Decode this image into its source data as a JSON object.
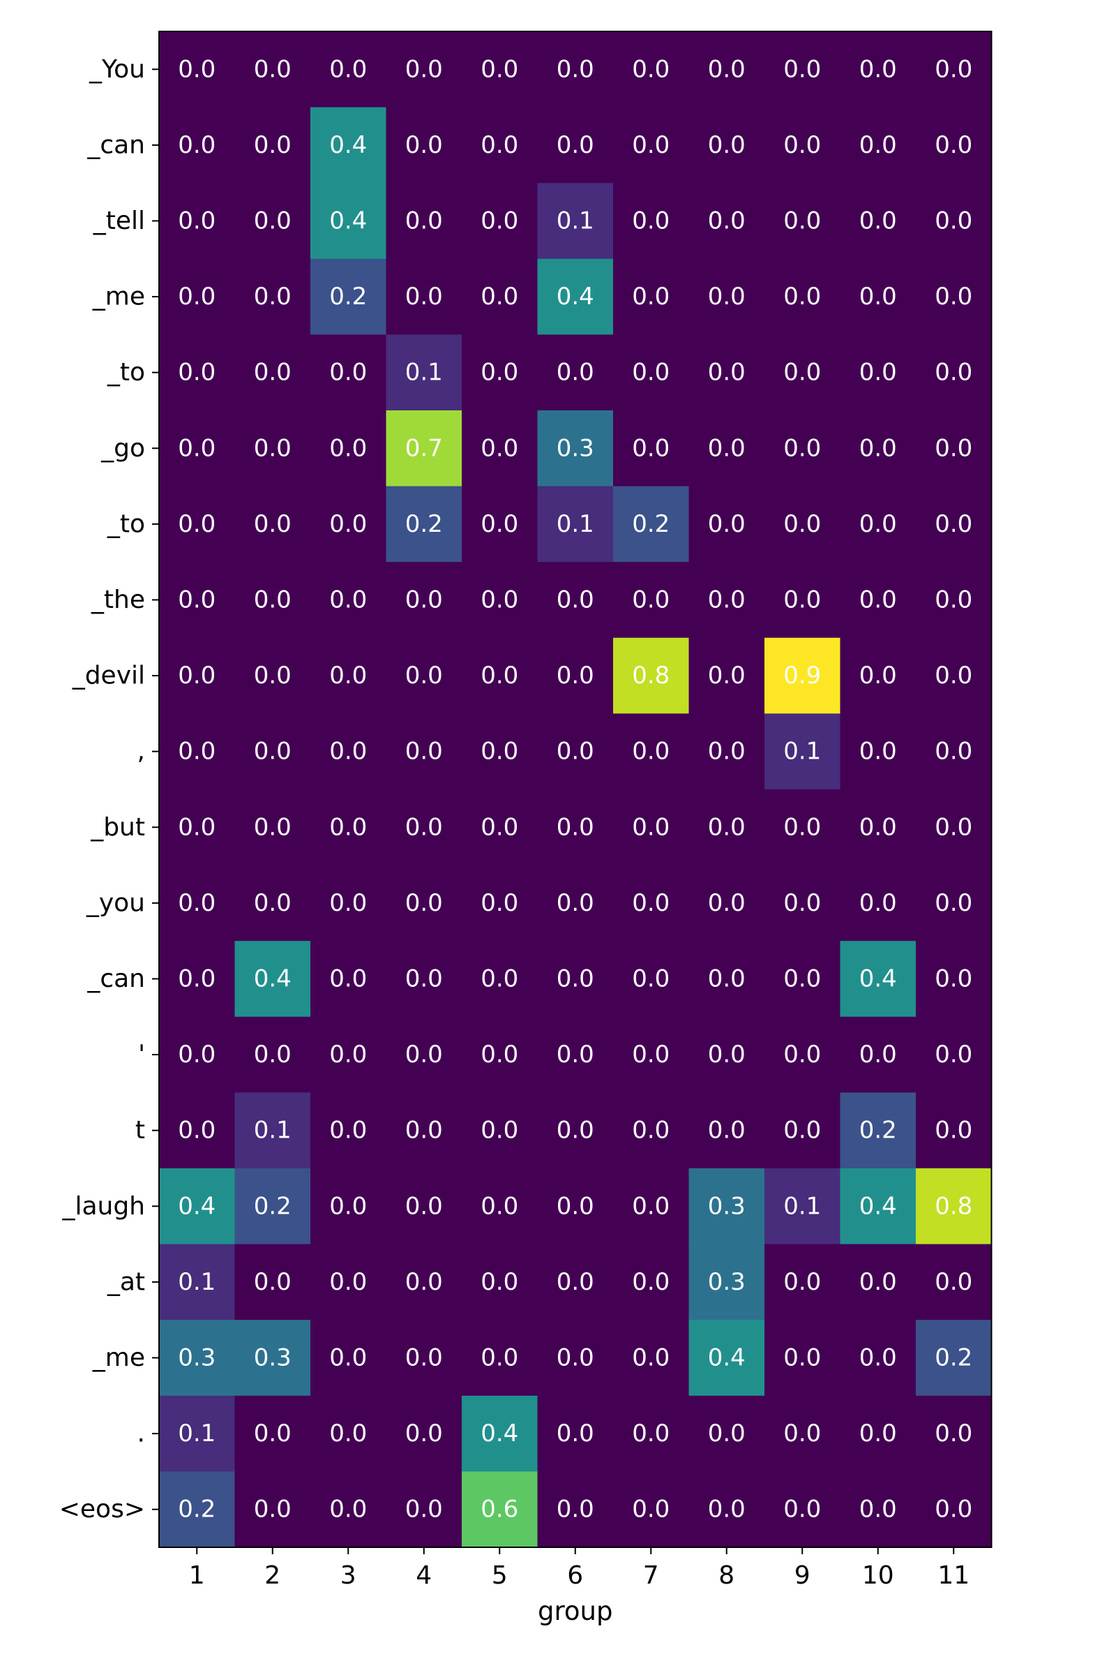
{
  "chart_data": {
    "type": "heatmap",
    "xlabel": "group",
    "ylabel": "",
    "colormap": "viridis",
    "vmin": 0.0,
    "vmax": 0.9,
    "x_labels": [
      "1",
      "2",
      "3",
      "4",
      "5",
      "6",
      "7",
      "8",
      "9",
      "10",
      "11"
    ],
    "y_labels": [
      "_You",
      "_can",
      "_tell",
      "_me",
      "_to",
      "_go",
      "_to",
      "_the",
      "_devil",
      ",",
      "_but",
      "_you",
      "_can",
      "'",
      "t",
      "_laugh",
      "_at",
      "_me",
      ".",
      "<eos>"
    ],
    "values": [
      [
        0.0,
        0.0,
        0.0,
        0.0,
        0.0,
        0.0,
        0.0,
        0.0,
        0.0,
        0.0,
        0.0
      ],
      [
        0.0,
        0.0,
        0.4,
        0.0,
        0.0,
        0.0,
        0.0,
        0.0,
        0.0,
        0.0,
        0.0
      ],
      [
        0.0,
        0.0,
        0.4,
        0.0,
        0.0,
        0.1,
        0.0,
        0.0,
        0.0,
        0.0,
        0.0
      ],
      [
        0.0,
        0.0,
        0.2,
        0.0,
        0.0,
        0.4,
        0.0,
        0.0,
        0.0,
        0.0,
        0.0
      ],
      [
        0.0,
        0.0,
        0.0,
        0.1,
        0.0,
        0.0,
        0.0,
        0.0,
        0.0,
        0.0,
        0.0
      ],
      [
        0.0,
        0.0,
        0.0,
        0.7,
        0.0,
        0.3,
        0.0,
        0.0,
        0.0,
        0.0,
        0.0
      ],
      [
        0.0,
        0.0,
        0.0,
        0.2,
        0.0,
        0.1,
        0.2,
        0.0,
        0.0,
        0.0,
        0.0
      ],
      [
        0.0,
        0.0,
        0.0,
        0.0,
        0.0,
        0.0,
        0.0,
        0.0,
        0.0,
        0.0,
        0.0
      ],
      [
        0.0,
        0.0,
        0.0,
        0.0,
        0.0,
        0.0,
        0.8,
        0.0,
        0.9,
        0.0,
        0.0
      ],
      [
        0.0,
        0.0,
        0.0,
        0.0,
        0.0,
        0.0,
        0.0,
        0.0,
        0.1,
        0.0,
        0.0
      ],
      [
        0.0,
        0.0,
        0.0,
        0.0,
        0.0,
        0.0,
        0.0,
        0.0,
        0.0,
        0.0,
        0.0
      ],
      [
        0.0,
        0.0,
        0.0,
        0.0,
        0.0,
        0.0,
        0.0,
        0.0,
        0.0,
        0.0,
        0.0
      ],
      [
        0.0,
        0.4,
        0.0,
        0.0,
        0.0,
        0.0,
        0.0,
        0.0,
        0.0,
        0.4,
        0.0
      ],
      [
        0.0,
        0.0,
        0.0,
        0.0,
        0.0,
        0.0,
        0.0,
        0.0,
        0.0,
        0.0,
        0.0
      ],
      [
        0.0,
        0.1,
        0.0,
        0.0,
        0.0,
        0.0,
        0.0,
        0.0,
        0.0,
        0.2,
        0.0
      ],
      [
        0.4,
        0.2,
        0.0,
        0.0,
        0.0,
        0.0,
        0.0,
        0.3,
        0.1,
        0.4,
        0.8
      ],
      [
        0.1,
        0.0,
        0.0,
        0.0,
        0.0,
        0.0,
        0.0,
        0.3,
        0.0,
        0.0,
        0.0
      ],
      [
        0.3,
        0.3,
        0.0,
        0.0,
        0.0,
        0.0,
        0.0,
        0.4,
        0.0,
        0.0,
        0.2
      ],
      [
        0.1,
        0.0,
        0.0,
        0.0,
        0.4,
        0.0,
        0.0,
        0.0,
        0.0,
        0.0,
        0.0
      ],
      [
        0.2,
        0.0,
        0.0,
        0.0,
        0.6,
        0.0,
        0.0,
        0.0,
        0.0,
        0.0,
        0.0
      ]
    ],
    "cell_labels": [
      [
        "0.0",
        "0.0",
        "0.0",
        "0.0",
        "0.0",
        "0.0",
        "0.0",
        "0.0",
        "0.0",
        "0.0",
        "0.0"
      ],
      [
        "0.0",
        "0.0",
        "0.4",
        "0.0",
        "0.0",
        "0.0",
        "0.0",
        "0.0",
        "0.0",
        "0.0",
        "0.0"
      ],
      [
        "0.0",
        "0.0",
        "0.4",
        "0.0",
        "0.0",
        "0.1",
        "0.0",
        "0.0",
        "0.0",
        "0.0",
        "0.0"
      ],
      [
        "0.0",
        "0.0",
        "0.2",
        "0.0",
        "0.0",
        "0.4",
        "0.0",
        "0.0",
        "0.0",
        "0.0",
        "0.0"
      ],
      [
        "0.0",
        "0.0",
        "0.0",
        "0.1",
        "0.0",
        "0.0",
        "0.0",
        "0.0",
        "0.0",
        "0.0",
        "0.0"
      ],
      [
        "0.0",
        "0.0",
        "0.0",
        "0.7",
        "0.0",
        "0.3",
        "0.0",
        "0.0",
        "0.0",
        "0.0",
        "0.0"
      ],
      [
        "0.0",
        "0.0",
        "0.0",
        "0.2",
        "0.0",
        "0.1",
        "0.2",
        "0.0",
        "0.0",
        "0.0",
        "0.0"
      ],
      [
        "0.0",
        "0.0",
        "0.0",
        "0.0",
        "0.0",
        "0.0",
        "0.0",
        "0.0",
        "0.0",
        "0.0",
        "0.0"
      ],
      [
        "0.0",
        "0.0",
        "0.0",
        "0.0",
        "0.0",
        "0.0",
        "0.8",
        "0.0",
        "0.9",
        "0.0",
        "0.0"
      ],
      [
        "0.0",
        "0.0",
        "0.0",
        "0.0",
        "0.0",
        "0.0",
        "0.0",
        "0.0",
        "0.1",
        "0.0",
        "0.0"
      ],
      [
        "0.0",
        "0.0",
        "0.0",
        "0.0",
        "0.0",
        "0.0",
        "0.0",
        "0.0",
        "0.0",
        "0.0",
        "0.0"
      ],
      [
        "0.0",
        "0.0",
        "0.0",
        "0.0",
        "0.0",
        "0.0",
        "0.0",
        "0.0",
        "0.0",
        "0.0",
        "0.0"
      ],
      [
        "0.0",
        "0.4",
        "0.0",
        "0.0",
        "0.0",
        "0.0",
        "0.0",
        "0.0",
        "0.0",
        "0.4",
        "0.0"
      ],
      [
        "0.0",
        "0.0",
        "0.0",
        "0.0",
        "0.0",
        "0.0",
        "0.0",
        "0.0",
        "0.0",
        "0.0",
        "0.0"
      ],
      [
        "0.0",
        "0.1",
        "0.0",
        "0.0",
        "0.0",
        "0.0",
        "0.0",
        "0.0",
        "0.0",
        "0.2",
        "0.0"
      ],
      [
        "0.4",
        "0.2",
        "0.0",
        "0.0",
        "0.0",
        "0.0",
        "0.0",
        "0.3",
        "0.1",
        "0.4",
        "0.8"
      ],
      [
        "0.1",
        "0.0",
        "0.0",
        "0.0",
        "0.0",
        "0.0",
        "0.0",
        "0.3",
        "0.0",
        "0.0",
        "0.0"
      ],
      [
        "0.3",
        "0.3",
        "0.0",
        "0.0",
        "0.0",
        "0.0",
        "0.0",
        "0.4",
        "0.0",
        "0.0",
        "0.2"
      ],
      [
        "0.1",
        "0.0",
        "0.0",
        "0.0",
        "0.4",
        "0.0",
        "0.0",
        "0.0",
        "0.0",
        "0.0",
        "0.0"
      ],
      [
        "0.2",
        "0.0",
        "0.0",
        "0.0",
        "0.6",
        "0.0",
        "0.0",
        "0.0",
        "0.0",
        "0.0",
        "0.0"
      ]
    ],
    "colors": {
      "0.0": "#440154",
      "0.1": "#472d7b",
      "0.2": "#3b528b",
      "0.3": "#2c728e",
      "0.4": "#21908d",
      "0.6": "#5dc863",
      "0.7": "#a0da39",
      "0.8": "#c2df23",
      "0.9": "#fde725"
    },
    "cell_text_color": "#ffffff",
    "grid": false,
    "legend": "none"
  }
}
